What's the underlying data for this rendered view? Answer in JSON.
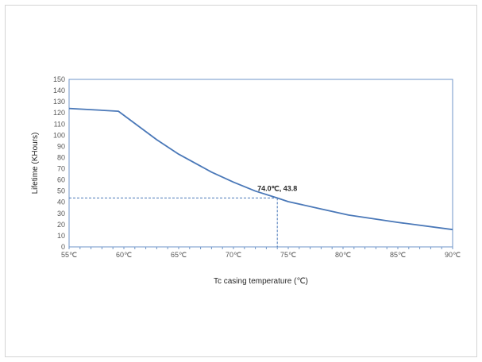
{
  "chart_data": {
    "type": "line",
    "title": "",
    "xlabel": "Tc casing temperature (℃)",
    "ylabel": "Lifetime (KHours)",
    "xlim": [
      55,
      90
    ],
    "ylim": [
      0,
      150
    ],
    "x_ticks": [
      "55℃",
      "60℃",
      "65℃",
      "70℃",
      "75℃",
      "80℃",
      "85℃",
      "90℃"
    ],
    "y_ticks": [
      "0",
      "10",
      "20",
      "30",
      "40",
      "50",
      "60",
      "70",
      "80",
      "90",
      "100",
      "110",
      "120",
      "130",
      "140",
      "150"
    ],
    "grid": false,
    "series": [
      {
        "color": "#4a78b8",
        "x": [
          55,
          59.5,
          63,
          65,
          68,
          70,
          72,
          74,
          75,
          78,
          80.5,
          85,
          90
        ],
        "y": [
          124,
          121.5,
          96,
          83,
          67,
          58,
          50,
          43.8,
          40.5,
          34,
          28.5,
          22,
          15.5
        ]
      }
    ],
    "annotation": {
      "label": "74.0℃, 43.8",
      "x": 74.0,
      "y": 43.8
    }
  }
}
